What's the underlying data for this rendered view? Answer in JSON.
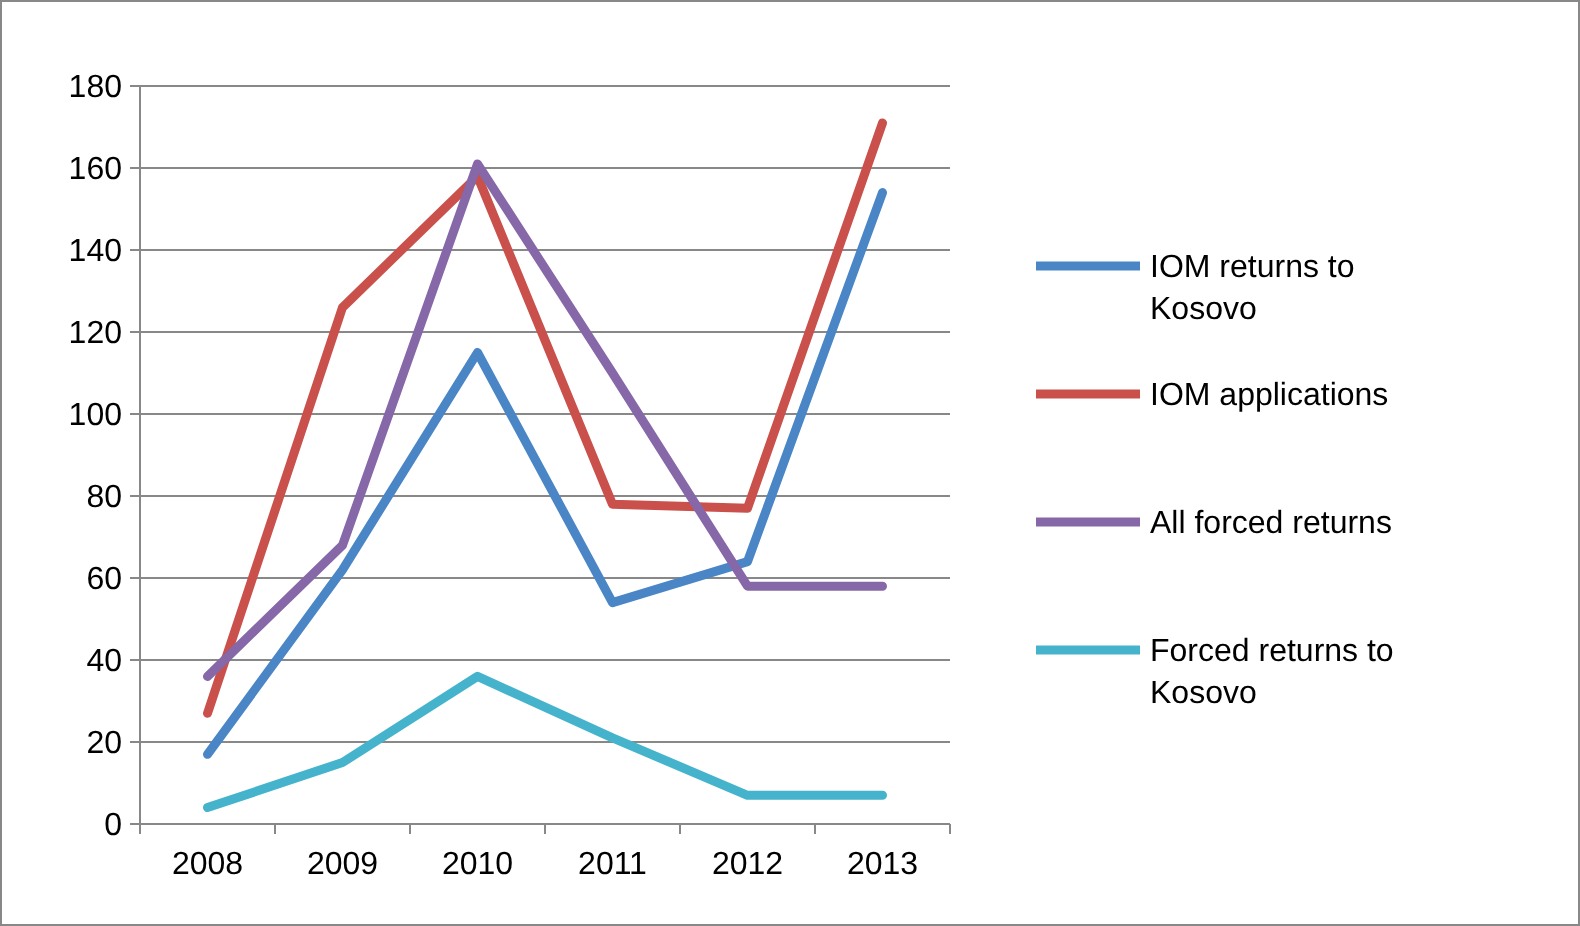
{
  "chart_data": {
    "type": "line",
    "categories": [
      "2008",
      "2009",
      "2010",
      "2011",
      "2012",
      "2013"
    ],
    "series": [
      {
        "name": "IOM returns to Kosovo",
        "color": "#4a86c6",
        "values": [
          17,
          62,
          115,
          54,
          64,
          154
        ]
      },
      {
        "name": "IOM applications",
        "color": "#c9504b",
        "values": [
          27,
          126,
          158,
          78,
          77,
          171
        ]
      },
      {
        "name": "All forced returns",
        "color": "#8667a8",
        "values": [
          36,
          68,
          161,
          110,
          58,
          58
        ]
      },
      {
        "name": "Forced returns to Kosovo",
        "color": "#45b3cc",
        "values": [
          4,
          15,
          36,
          21,
          7,
          7
        ]
      }
    ],
    "ylim": [
      0,
      180
    ],
    "yticks": [
      0,
      20,
      40,
      60,
      80,
      100,
      120,
      140,
      160,
      180
    ],
    "grid": "y",
    "legend": "right",
    "marker": "none",
    "line_style": "solid"
  }
}
